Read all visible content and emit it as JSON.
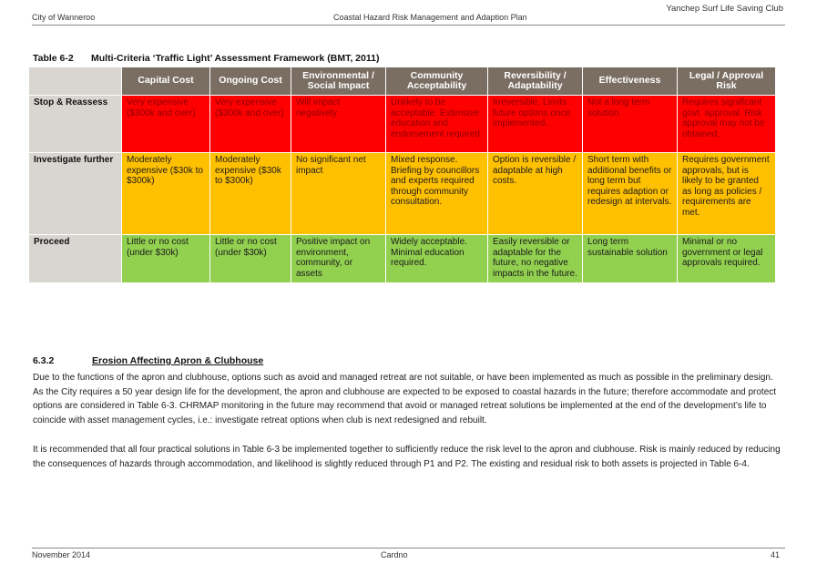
{
  "header": {
    "top_right": "Yanchep Surf Life Saving Club",
    "left": "City of Wanneroo",
    "center": "Coastal Hazard Risk Management and Adaption Plan"
  },
  "table": {
    "number": "Table 6-2",
    "title": "Multi-Criteria ‘Traffic Light’ Assessment Framework (BMT, 2011)",
    "columns": [
      "Capital Cost",
      "Ongoing Cost",
      "Environmental / Social Impact",
      "Community Acceptability",
      "Reversibility / Adaptability",
      "Effectiveness",
      "Legal / Approval Risk"
    ],
    "rows": [
      {
        "label": "Stop & Reassess",
        "color": "#ff0000",
        "cells": [
          "Very expensive ($300k and over)",
          "Very expensive ($300k and over)",
          "Will impact negatively",
          "Unlikely to be acceptable. Extensive education and endorsement required.",
          "Irreversible. Limits future options once implemented.",
          "Not a long term solution.",
          "Requires significant govt. approval. Risk approval may not be obtained."
        ]
      },
      {
        "label": "Investigate further",
        "color": "#ffc000",
        "cells": [
          "Moderately expensive ($30k to $300k)",
          "Moderately expensive ($30k to $300k)",
          "No significant net impact",
          "Mixed response. Briefing by councillors and experts required through community consultation.",
          "Option is reversible / adaptable at high costs.",
          "Short term with additional benefits or long term but requires adaption or redesign at intervals.",
          "Requires government approvals, but is likely to be granted as long as policies / requirements are met."
        ]
      },
      {
        "label": "Proceed",
        "color": "#92d050",
        "cells": [
          "Little or no cost (under $30k)",
          "Little or no cost (under $30k)",
          "Positive impact on environment, community, or assets",
          "Widely acceptable. Minimal education required.",
          "Easily reversible or adaptable for the future, no negative impacts in the future.",
          "Long term sustainable solution",
          "Minimal or no government or legal approvals required."
        ]
      }
    ]
  },
  "section": {
    "number": "6.3.2",
    "title": "Erosion Affecting Apron & Clubhouse",
    "paragraphs": [
      "Due to the functions of the apron and clubhouse, options such as avoid and managed retreat are not suitable, or have been implemented as much as possible in the preliminary design. As the City requires a 50 year design life for the development, the apron and clubhouse are expected to be exposed to coastal hazards in the future; therefore accommodate and protect options are considered in Table 6-3. CHRMAP monitoring in the future may recommend that avoid or managed retreat solutions be implemented at the end of the development’s life to coincide with asset management cycles, i.e.: investigate retreat options when club is next redesigned and rebuilt.",
      "It is recommended that all four practical solutions in Table 6-3 be implemented together to sufficiently reduce the risk level to the apron and clubhouse. Risk is mainly reduced by reducing the consequences of hazards through accommodation, and likelihood is slightly reduced through P1 and P2. The existing and residual risk to both assets is projected in Table 6-4."
    ]
  },
  "footer": {
    "left": "November 2014",
    "center": "Cardno",
    "page": "41"
  }
}
